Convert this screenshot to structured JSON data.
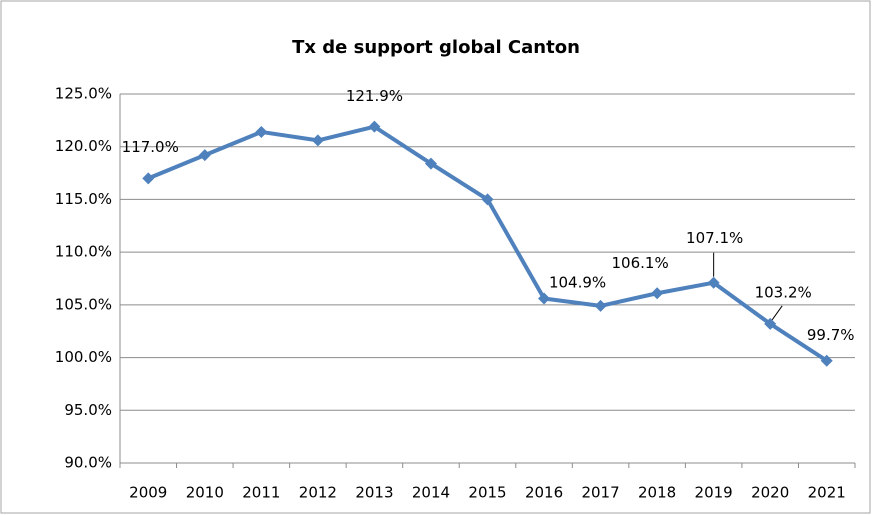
{
  "chart_data": {
    "type": "line",
    "title": "Tx de support global Canton",
    "categories": [
      "2009",
      "2010",
      "2011",
      "2012",
      "2013",
      "2014",
      "2015",
      "2016",
      "2017",
      "2018",
      "2019",
      "2020",
      "2021"
    ],
    "series": [
      {
        "color": "#4f81bd",
        "values": [
          117.0,
          119.2,
          121.4,
          120.6,
          121.9,
          118.4,
          115.0,
          105.6,
          104.9,
          106.1,
          107.1,
          103.2,
          99.7
        ],
        "value_labels": [
          "117.0%",
          null,
          null,
          null,
          "121.9%",
          null,
          null,
          null,
          "104.9%",
          "106.1%",
          "107.1%",
          "103.2%",
          "99.7%"
        ]
      }
    ],
    "ylim": [
      90,
      125
    ],
    "yticks": [
      {
        "value": 90,
        "label": "90.0%"
      },
      {
        "value": 95,
        "label": "95.0%"
      },
      {
        "value": 100,
        "label": "100.0%"
      },
      {
        "value": 105,
        "label": "105.0%"
      },
      {
        "value": 110,
        "label": "110.0%"
      },
      {
        "value": 115,
        "label": "115.0%"
      },
      {
        "value": 120,
        "label": "120.0%"
      },
      {
        "value": 125,
        "label": "125.0%"
      }
    ],
    "grid": true
  }
}
